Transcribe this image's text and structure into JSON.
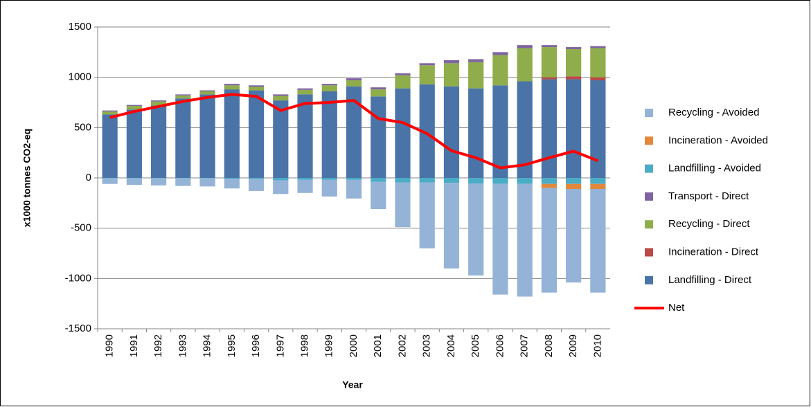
{
  "chart_data": {
    "type": "bar",
    "stacked": true,
    "x_label": "Year",
    "y_label": "x1000 tonnes CO2-eq",
    "categories": [
      "1990",
      "1991",
      "1992",
      "1993",
      "1994",
      "1995",
      "1996",
      "1997",
      "1998",
      "1999",
      "2000",
      "2001",
      "2002",
      "2003",
      "2004",
      "2005",
      "2006",
      "2007",
      "2008",
      "2009",
      "2010"
    ],
    "ylim": [
      -1500,
      1500
    ],
    "yticks": [
      -1500,
      -1000,
      -500,
      0,
      500,
      1000,
      1500
    ],
    "grid": true,
    "legend": "right",
    "series": [
      {
        "name": "Landfilling - Direct",
        "color": "#4a74a8",
        "values": [
          630,
          680,
          720,
          790,
          830,
          880,
          870,
          770,
          830,
          860,
          910,
          810,
          890,
          930,
          910,
          890,
          920,
          960,
          980,
          980,
          970
        ]
      },
      {
        "name": "Incineration - Direct",
        "color": "#b94a47",
        "values": [
          0,
          0,
          0,
          0,
          0,
          0,
          0,
          0,
          0,
          0,
          0,
          0,
          0,
          0,
          0,
          0,
          0,
          0,
          20,
          30,
          30
        ]
      },
      {
        "name": "Recycling - Direct",
        "color": "#8fad4a",
        "values": [
          30,
          35,
          40,
          30,
          30,
          40,
          35,
          45,
          45,
          60,
          60,
          70,
          130,
          190,
          230,
          260,
          300,
          330,
          300,
          270,
          290
        ]
      },
      {
        "name": "Transport - Direct",
        "color": "#7f64a1",
        "values": [
          10,
          10,
          10,
          10,
          10,
          15,
          15,
          15,
          15,
          15,
          20,
          20,
          20,
          20,
          30,
          30,
          30,
          30,
          20,
          20,
          20
        ]
      },
      {
        "name": "Landfilling - Avoided",
        "color": "#4bacc6",
        "values": [
          -5,
          -5,
          -5,
          -5,
          -5,
          -10,
          -10,
          -25,
          -20,
          -20,
          -20,
          -40,
          -45,
          -45,
          -50,
          -55,
          -60,
          -60,
          -60,
          -60,
          -60
        ]
      },
      {
        "name": "Incineration - Avoided",
        "color": "#e3883b",
        "values": [
          0,
          0,
          0,
          0,
          0,
          0,
          0,
          0,
          0,
          0,
          0,
          0,
          0,
          0,
          0,
          0,
          0,
          0,
          -40,
          -50,
          -50
        ]
      },
      {
        "name": "Recycling - Avoided",
        "color": "#95b3d7",
        "values": [
          -55,
          -65,
          -70,
          -75,
          -80,
          -95,
          -120,
          -135,
          -130,
          -165,
          -185,
          -270,
          -445,
          -655,
          -850,
          -915,
          -1100,
          -1120,
          -1040,
          -930,
          -1030
        ]
      },
      {
        "name": "Net",
        "type": "line",
        "color": "#ff0000",
        "values": [
          600,
          660,
          710,
          760,
          800,
          830,
          810,
          670,
          740,
          750,
          770,
          590,
          550,
          440,
          270,
          200,
          100,
          130,
          200,
          265,
          170
        ]
      }
    ]
  }
}
